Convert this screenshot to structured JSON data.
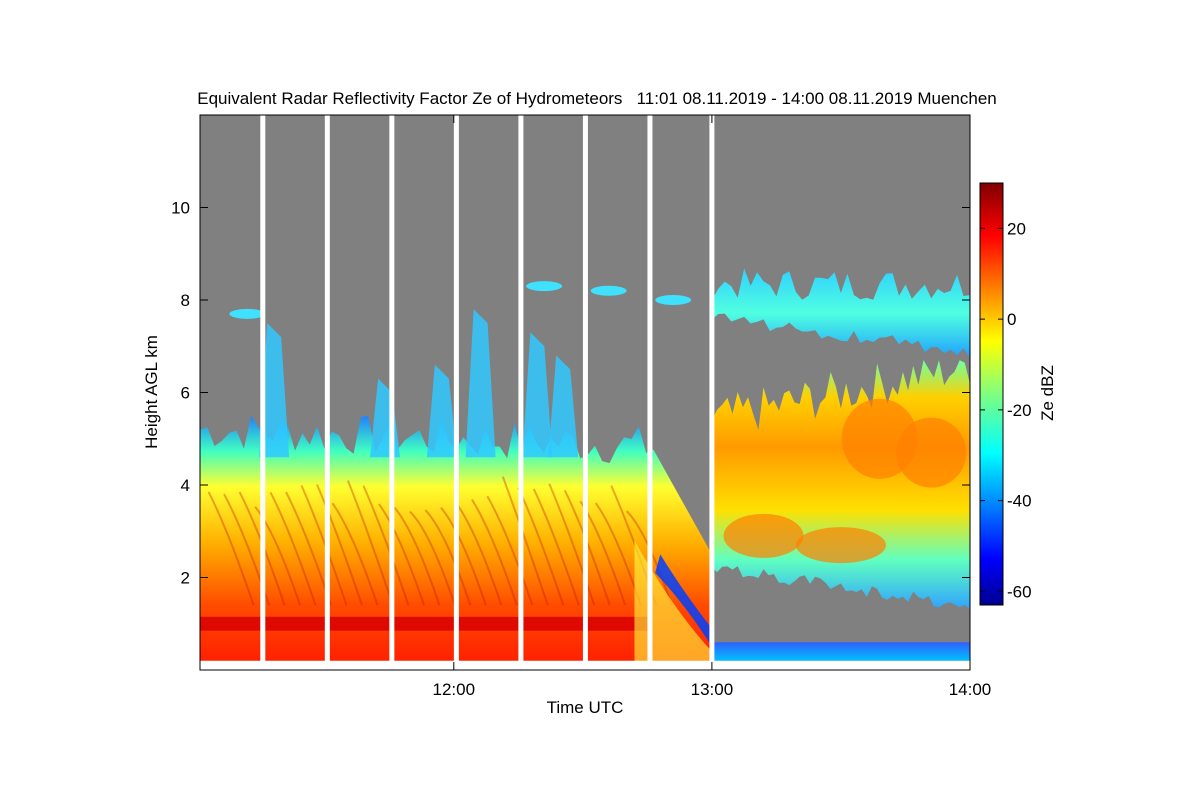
{
  "chart_data": {
    "type": "heatmap",
    "title": "Equivalent Radar Reflectivity Factor Ze of Hydrometeors   11:01 08.11.2019 - 14:00 08.11.2019 Muenchen",
    "xlabel": "Time UTC",
    "ylabel": "Height AGL km",
    "xlim_hours": [
      11.0167,
      14.0
    ],
    "ylim_km": [
      0,
      12
    ],
    "x_ticks": [
      {
        "value": 12,
        "label": "12:00"
      },
      {
        "value": 13,
        "label": "13:00"
      },
      {
        "value": 14,
        "label": "14:00"
      }
    ],
    "y_ticks": [
      {
        "value": 2,
        "label": "2"
      },
      {
        "value": 4,
        "label": "4"
      },
      {
        "value": 6,
        "label": "6"
      },
      {
        "value": 8,
        "label": "8"
      },
      {
        "value": 10,
        "label": "10"
      }
    ],
    "colorbar": {
      "label": "Ze dBZ",
      "range": [
        -63,
        30
      ],
      "ticks": [
        {
          "value": 20,
          "label": "20"
        },
        {
          "value": 0,
          "label": "0"
        },
        {
          "value": -20,
          "label": "-20"
        },
        {
          "value": -40,
          "label": "-40"
        },
        {
          "value": -60,
          "label": "-60"
        }
      ]
    },
    "no_signal_color": "#808080",
    "data_gaps_hours": [
      11.26,
      11.51,
      11.76,
      12.01,
      12.26,
      12.51,
      12.76,
      13.0
    ],
    "features": [
      {
        "name": "precipitation layer",
        "time_range": [
          11.0167,
          12.75
        ],
        "top_km": [
          5.2,
          3.0
        ],
        "peak_dbz": 20
      },
      {
        "name": "bright band",
        "time_range": [
          11.0167,
          12.75
        ],
        "height_km": 1.0,
        "peak_dbz": 25
      },
      {
        "name": "upper cirrus",
        "time_range": [
          13.0,
          14.0
        ],
        "height_km": [
          6.8,
          8.8
        ],
        "peak_dbz": -15
      },
      {
        "name": "convective cloud",
        "time_range": [
          13.0,
          14.0
        ],
        "height_km": [
          1.5,
          6.5
        ],
        "peak_dbz": 12
      },
      {
        "name": "low drizzle layer",
        "time_range": [
          13.0,
          14.0
        ],
        "height_km": [
          0.2,
          0.6
        ],
        "peak_dbz": -38
      }
    ]
  }
}
